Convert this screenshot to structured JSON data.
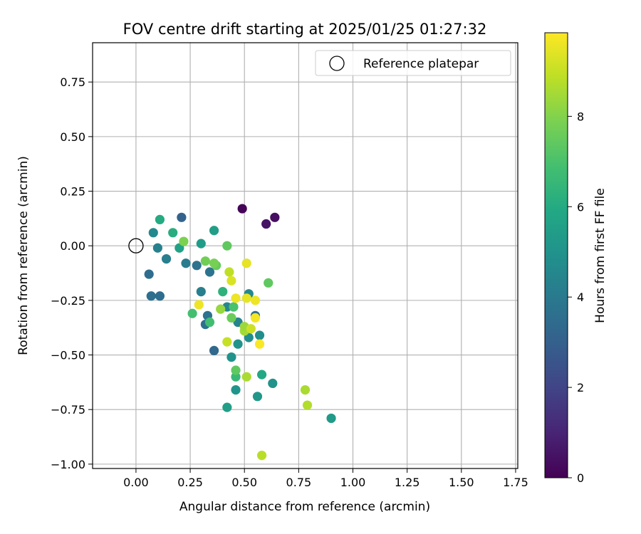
{
  "chart_data": {
    "type": "scatter",
    "title": "FOV centre drift starting at 2025/01/25 01:27:32",
    "xlabel": "Angular distance from reference (arcmin)",
    "ylabel": "Rotation from reference (arcmin)",
    "xlim": [
      -0.2,
      1.76
    ],
    "ylim": [
      -1.02,
      0.93
    ],
    "xticks": [
      "0.00",
      "0.25",
      "0.50",
      "0.75",
      "1.00",
      "1.25",
      "1.50",
      "1.75"
    ],
    "yticks": [
      "0.75",
      "0.50",
      "0.25",
      "0.00",
      "−0.25",
      "−0.50",
      "−0.75",
      "−1.00"
    ],
    "grid": true,
    "legend": {
      "placement": "top-right",
      "entries": [
        "Reference platepar"
      ]
    },
    "reference_point": {
      "x": 0.0,
      "y": 0.0
    },
    "colorbar": {
      "label": "Hours from first FF file",
      "min": 0,
      "max": 9.85,
      "ticks": [
        "0",
        "2",
        "4",
        "6",
        "8"
      ],
      "colormap": "viridis"
    },
    "points": [
      {
        "x": 0.49,
        "y": 0.17,
        "t": 0.1
      },
      {
        "x": 0.64,
        "y": 0.13,
        "t": 0.4
      },
      {
        "x": 0.6,
        "y": 0.1,
        "t": 0.5
      },
      {
        "x": 0.21,
        "y": 0.13,
        "t": 3.1
      },
      {
        "x": 0.36,
        "y": -0.48,
        "t": 3.3
      },
      {
        "x": 0.06,
        "y": -0.13,
        "t": 3.5
      },
      {
        "x": 0.07,
        "y": -0.23,
        "t": 3.6
      },
      {
        "x": 0.11,
        "y": -0.23,
        "t": 3.5
      },
      {
        "x": 0.28,
        "y": -0.09,
        "t": 3.7
      },
      {
        "x": 0.32,
        "y": -0.36,
        "t": 3.6
      },
      {
        "x": 0.33,
        "y": -0.32,
        "t": 3.7
      },
      {
        "x": 0.34,
        "y": -0.12,
        "t": 3.8
      },
      {
        "x": 0.55,
        "y": -0.32,
        "t": 3.6
      },
      {
        "x": 0.23,
        "y": -0.08,
        "t": 4.1
      },
      {
        "x": 0.14,
        "y": -0.06,
        "t": 4.2
      },
      {
        "x": 0.1,
        "y": -0.01,
        "t": 4.3
      },
      {
        "x": 0.08,
        "y": 0.06,
        "t": 4.6
      },
      {
        "x": 0.3,
        "y": -0.21,
        "t": 4.2
      },
      {
        "x": 0.42,
        "y": -0.28,
        "t": 4.5
      },
      {
        "x": 0.52,
        "y": -0.22,
        "t": 4.6
      },
      {
        "x": 0.47,
        "y": -0.35,
        "t": 4.4
      },
      {
        "x": 0.52,
        "y": -0.42,
        "t": 4.8
      },
      {
        "x": 0.57,
        "y": -0.41,
        "t": 4.8
      },
      {
        "x": 0.47,
        "y": -0.45,
        "t": 5.0
      },
      {
        "x": 0.44,
        "y": -0.51,
        "t": 5.0
      },
      {
        "x": 0.46,
        "y": -0.66,
        "t": 5.1
      },
      {
        "x": 0.63,
        "y": -0.63,
        "t": 5.0
      },
      {
        "x": 0.56,
        "y": -0.69,
        "t": 5.2
      },
      {
        "x": 0.9,
        "y": -0.79,
        "t": 5.3
      },
      {
        "x": 0.42,
        "y": -0.74,
        "t": 5.5
      },
      {
        "x": 0.3,
        "y": 0.01,
        "t": 5.4
      },
      {
        "x": 0.2,
        "y": -0.01,
        "t": 5.6
      },
      {
        "x": 0.36,
        "y": 0.07,
        "t": 5.5
      },
      {
        "x": 0.58,
        "y": -0.59,
        "t": 5.9
      },
      {
        "x": 0.11,
        "y": 0.12,
        "t": 6.0
      },
      {
        "x": 0.17,
        "y": 0.06,
        "t": 6.1
      },
      {
        "x": 0.4,
        "y": -0.21,
        "t": 6.3
      },
      {
        "x": 0.46,
        "y": -0.6,
        "t": 6.6
      },
      {
        "x": 0.34,
        "y": -0.35,
        "t": 6.8
      },
      {
        "x": 0.26,
        "y": -0.31,
        "t": 6.9
      },
      {
        "x": 0.45,
        "y": -0.28,
        "t": 7.0
      },
      {
        "x": 0.46,
        "y": -0.57,
        "t": 7.4
      },
      {
        "x": 0.61,
        "y": -0.17,
        "t": 7.4
      },
      {
        "x": 0.42,
        "y": 0.0,
        "t": 7.4
      },
      {
        "x": 0.44,
        "y": -0.33,
        "t": 7.6
      },
      {
        "x": 0.37,
        "y": -0.09,
        "t": 7.5
      },
      {
        "x": 0.32,
        "y": -0.07,
        "t": 7.7
      },
      {
        "x": 0.36,
        "y": -0.08,
        "t": 7.8
      },
      {
        "x": 0.22,
        "y": 0.02,
        "t": 7.9
      },
      {
        "x": 0.39,
        "y": -0.29,
        "t": 8.3
      },
      {
        "x": 0.5,
        "y": -0.39,
        "t": 8.5
      },
      {
        "x": 0.5,
        "y": -0.37,
        "t": 8.4
      },
      {
        "x": 0.51,
        "y": -0.6,
        "t": 8.6
      },
      {
        "x": 0.78,
        "y": -0.66,
        "t": 8.6
      },
      {
        "x": 0.79,
        "y": -0.73,
        "t": 8.7
      },
      {
        "x": 0.43,
        "y": -0.12,
        "t": 8.9
      },
      {
        "x": 0.42,
        "y": -0.44,
        "t": 9.0
      },
      {
        "x": 0.58,
        "y": -0.96,
        "t": 8.8
      },
      {
        "x": 0.53,
        "y": -0.38,
        "t": 9.1
      },
      {
        "x": 0.44,
        "y": -0.16,
        "t": 9.3
      },
      {
        "x": 0.51,
        "y": -0.08,
        "t": 9.5
      },
      {
        "x": 0.46,
        "y": -0.24,
        "t": 9.6
      },
      {
        "x": 0.51,
        "y": -0.24,
        "t": 9.5
      },
      {
        "x": 0.55,
        "y": -0.25,
        "t": 9.6
      },
      {
        "x": 0.29,
        "y": -0.27,
        "t": 9.6
      },
      {
        "x": 0.55,
        "y": -0.33,
        "t": 9.7
      },
      {
        "x": 0.57,
        "y": -0.45,
        "t": 9.8
      }
    ]
  }
}
